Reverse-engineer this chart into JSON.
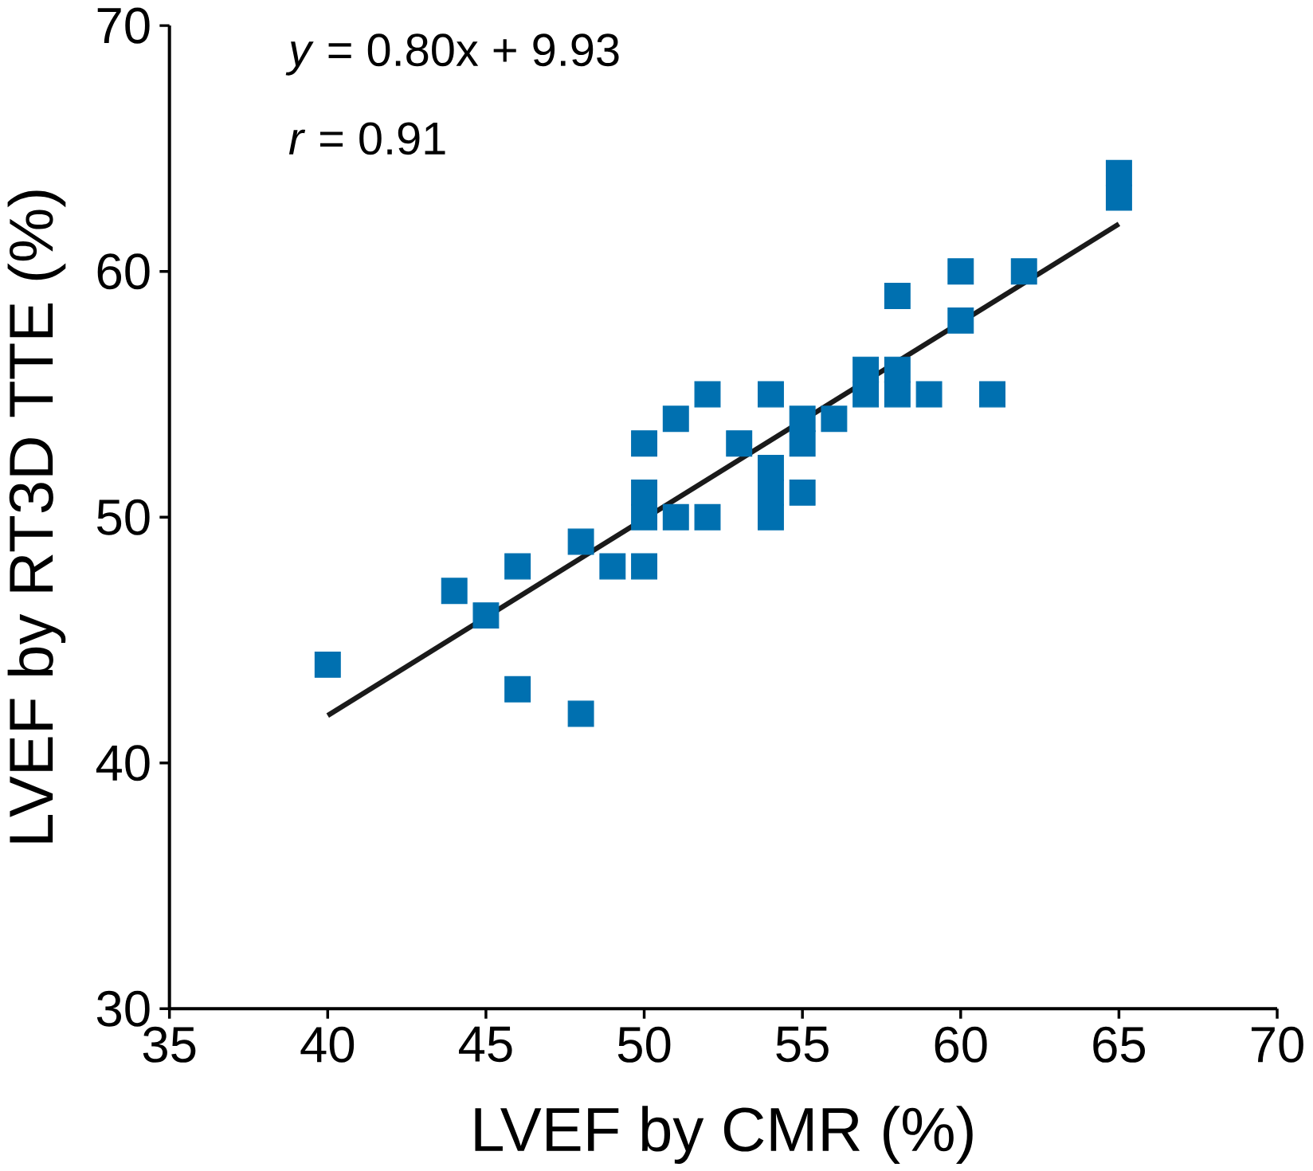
{
  "chart_data": {
    "type": "scatter",
    "xlabel": "LVEF by CMR (%)",
    "ylabel": "LVEF by RT3D TTE (%)",
    "annotations": [
      "*y* = 0.80x + 9.93",
      "*r* = 0.91"
    ],
    "xlim": [
      35,
      70
    ],
    "ylim": [
      30,
      70
    ],
    "xticks": [
      35,
      40,
      45,
      50,
      55,
      60,
      65,
      70
    ],
    "yticks": [
      30,
      40,
      50,
      60,
      70
    ],
    "grid": false,
    "marker": "square",
    "series": [
      {
        "color": "#0070b0",
        "x": [
          40,
          44,
          45,
          46,
          46,
          48,
          48,
          49,
          50,
          50,
          50,
          50,
          51,
          51,
          52,
          52,
          53,
          54,
          54,
          54,
          54,
          55,
          55,
          55,
          56,
          57,
          57,
          58,
          58,
          58,
          59,
          60,
          60,
          61,
          62,
          65,
          65
        ],
        "values": [
          44,
          47,
          46,
          48,
          43,
          49,
          42,
          48,
          53,
          51,
          50,
          48,
          54,
          50,
          55,
          50,
          53,
          55,
          52,
          51,
          50,
          54,
          53,
          51,
          54,
          56,
          55,
          59,
          56,
          55,
          55,
          60,
          58,
          55,
          60,
          64,
          63
        ]
      },
      {
        "type": "line",
        "color": "#1a1a1a",
        "marker": "none",
        "x": [
          40,
          65
        ],
        "values": [
          41.93,
          61.93
        ]
      }
    ]
  }
}
